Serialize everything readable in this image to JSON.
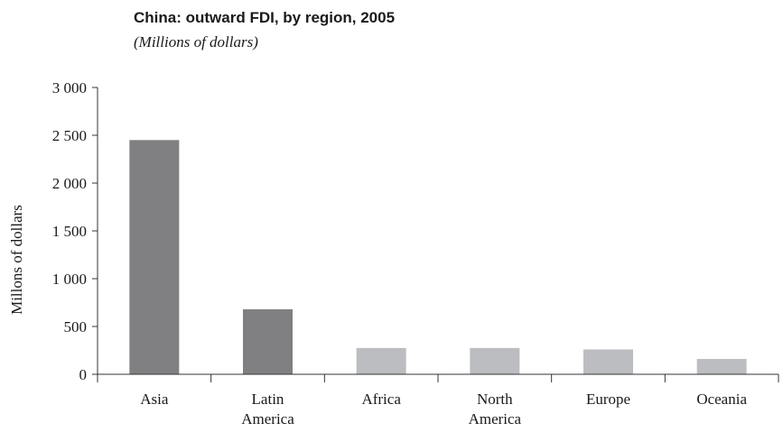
{
  "chart_data": {
    "type": "bar",
    "title": "China: outward FDI, by region, 2005",
    "subtitle": "(Millions of dollars)",
    "xlabel": "",
    "ylabel": "Millons of dollars",
    "ylim": [
      0,
      3000
    ],
    "yticks": [
      0,
      500,
      1000,
      1500,
      2000,
      2500,
      3000
    ],
    "ytick_labels": [
      "0",
      "500",
      "1 000",
      "1 500",
      "2 000",
      "2 500",
      "3 000"
    ],
    "categories": [
      [
        "Asia"
      ],
      [
        "Latin",
        "America"
      ],
      [
        "Africa"
      ],
      [
        "North",
        "America"
      ],
      [
        "Europe"
      ],
      [
        "Oceania"
      ]
    ],
    "values": [
      2450,
      680,
      275,
      275,
      260,
      160
    ],
    "colors": [
      "#808082",
      "#808082",
      "#bcbdc0",
      "#bcbdc0",
      "#bcbdc0",
      "#bcbdc0"
    ],
    "axis_color": "#333333",
    "grid": false,
    "legend": "none"
  }
}
